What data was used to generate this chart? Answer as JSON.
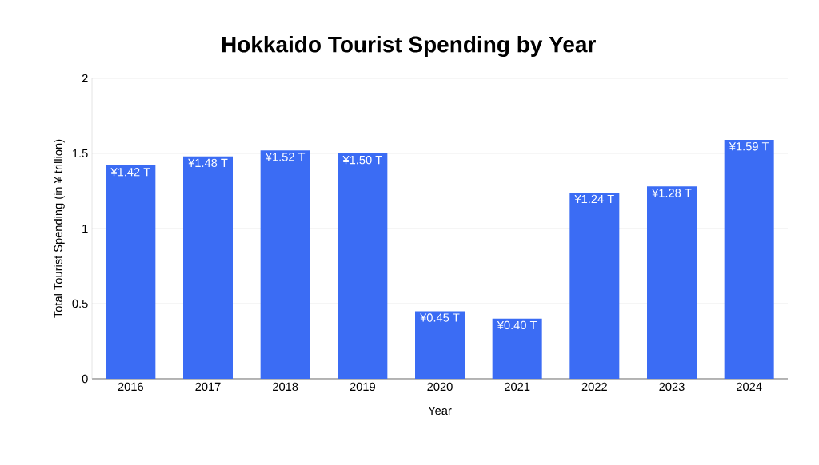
{
  "chart_data": {
    "type": "bar",
    "title": "Hokkaido Tourist Spending by Year",
    "xlabel": "Year",
    "ylabel": "Total Tourist Spending (in ¥ trillion)",
    "categories": [
      "2016",
      "2017",
      "2018",
      "2019",
      "2020",
      "2021",
      "2022",
      "2023",
      "2024"
    ],
    "values": [
      1.42,
      1.48,
      1.52,
      1.5,
      0.45,
      0.4,
      1.24,
      1.28,
      1.59
    ],
    "value_labels": [
      "¥1.42 T",
      "¥1.48 T",
      "¥1.52 T",
      "¥1.50 T",
      "¥0.45 T",
      "¥0.40 T",
      "¥1.24 T",
      "¥1.28 T",
      "¥1.59 T"
    ],
    "color": "#3b6cf4",
    "ylim": [
      0,
      2
    ],
    "yticks": [
      0,
      0.5,
      1,
      1.5,
      2
    ],
    "grid": "y"
  }
}
